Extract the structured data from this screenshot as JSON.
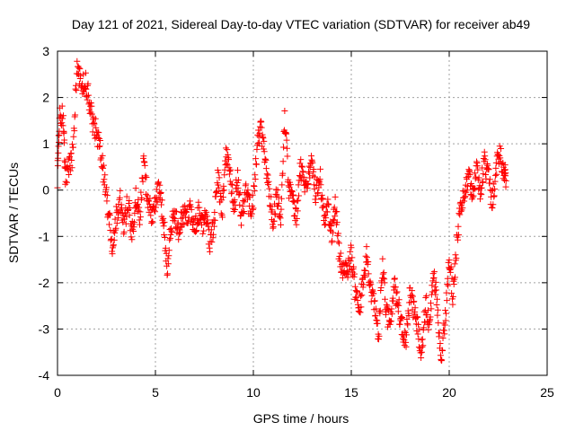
{
  "chart_data": {
    "type": "scatter",
    "title": "Day 121 of 2021, Sidereal Day-to-day VTEC variation (SDTVAR) for receiver ab49",
    "xlabel": "GPS time / hours",
    "ylabel": "SDTVAR / TECUs",
    "xlim": [
      0,
      25
    ],
    "ylim": [
      -4,
      3
    ],
    "x_ticks": [
      0,
      5,
      10,
      15,
      20,
      25
    ],
    "y_ticks": [
      -4,
      -3,
      -2,
      -1,
      0,
      1,
      2,
      3
    ],
    "x_tick_labels": [
      "0",
      "5",
      "10",
      "15",
      "20",
      "25"
    ],
    "y_tick_labels": [
      "-4",
      "-3",
      "-2",
      "-1",
      "0",
      "1",
      "2",
      "3"
    ],
    "grid": true,
    "marker": "+",
    "color": "#ff0000",
    "series": [
      {
        "name": "SDTVAR",
        "trend": [
          [
            0.0,
            0.3
          ],
          [
            0.1,
            1.6
          ],
          [
            0.3,
            1.6
          ],
          [
            0.4,
            0.3
          ],
          [
            0.6,
            0.5
          ],
          [
            0.8,
            0.8
          ],
          [
            1.0,
            2.8
          ],
          [
            1.2,
            2.2
          ],
          [
            1.4,
            2.4
          ],
          [
            1.6,
            2.0
          ],
          [
            1.8,
            1.5
          ],
          [
            2.0,
            1.2
          ],
          [
            2.2,
            0.9
          ],
          [
            2.4,
            0.2
          ],
          [
            2.6,
            -0.5
          ],
          [
            2.8,
            -1.2
          ],
          [
            3.0,
            -0.6
          ],
          [
            3.2,
            -0.2
          ],
          [
            3.4,
            -0.8
          ],
          [
            3.6,
            -0.2
          ],
          [
            3.8,
            -1.0
          ],
          [
            4.0,
            -0.1
          ],
          [
            4.2,
            -0.6
          ],
          [
            4.4,
            0.6
          ],
          [
            4.6,
            -0.2
          ],
          [
            4.8,
            -0.5
          ],
          [
            5.0,
            -0.3
          ],
          [
            5.2,
            0.1
          ],
          [
            5.4,
            -0.6
          ],
          [
            5.6,
            -1.7
          ],
          [
            5.8,
            -0.7
          ],
          [
            6.0,
            -0.5
          ],
          [
            6.2,
            -0.9
          ],
          [
            6.4,
            -0.5
          ],
          [
            6.6,
            -0.6
          ],
          [
            6.8,
            -0.4
          ],
          [
            7.0,
            -0.8
          ],
          [
            7.2,
            -0.5
          ],
          [
            7.4,
            -0.8
          ],
          [
            7.6,
            -0.6
          ],
          [
            7.8,
            -1.2
          ],
          [
            8.0,
            -0.6
          ],
          [
            8.2,
            0.3
          ],
          [
            8.4,
            -0.5
          ],
          [
            8.6,
            0.8
          ],
          [
            8.8,
            0.4
          ],
          [
            9.0,
            -0.4
          ],
          [
            9.2,
            0.3
          ],
          [
            9.4,
            -0.7
          ],
          [
            9.6,
            0.1
          ],
          [
            9.8,
            -0.4
          ],
          [
            10.0,
            -0.2
          ],
          [
            10.2,
            1.0
          ],
          [
            10.4,
            1.3
          ],
          [
            10.6,
            0.6
          ],
          [
            10.8,
            0.0
          ],
          [
            11.0,
            -0.6
          ],
          [
            11.2,
            -0.1
          ],
          [
            11.4,
            -0.6
          ],
          [
            11.6,
            1.6
          ],
          [
            11.8,
            0.1
          ],
          [
            12.0,
            -0.2
          ],
          [
            12.2,
            -0.6
          ],
          [
            12.4,
            0.5
          ],
          [
            12.6,
            0.0
          ],
          [
            12.8,
            0.2
          ],
          [
            13.0,
            0.6
          ],
          [
            13.2,
            -0.1
          ],
          [
            13.4,
            0.3
          ],
          [
            13.6,
            -0.6
          ],
          [
            13.8,
            -0.4
          ],
          [
            14.0,
            -1.0
          ],
          [
            14.2,
            -0.3
          ],
          [
            14.4,
            -1.5
          ],
          [
            14.6,
            -1.7
          ],
          [
            14.8,
            -1.8
          ],
          [
            15.0,
            -1.4
          ],
          [
            15.2,
            -2.2
          ],
          [
            15.4,
            -2.6
          ],
          [
            15.6,
            -2.0
          ],
          [
            15.8,
            -1.3
          ],
          [
            16.0,
            -2.2
          ],
          [
            16.2,
            -2.6
          ],
          [
            16.4,
            -3.1
          ],
          [
            16.6,
            -1.6
          ],
          [
            16.8,
            -2.7
          ],
          [
            17.0,
            -2.9
          ],
          [
            17.2,
            -2.1
          ],
          [
            17.4,
            -2.5
          ],
          [
            17.6,
            -3.0
          ],
          [
            17.8,
            -3.2
          ],
          [
            18.0,
            -2.2
          ],
          [
            18.2,
            -2.6
          ],
          [
            18.4,
            -3.0
          ],
          [
            18.6,
            -3.5
          ],
          [
            18.8,
            -2.4
          ],
          [
            19.0,
            -3.0
          ],
          [
            19.2,
            -1.7
          ],
          [
            19.4,
            -2.6
          ],
          [
            19.6,
            -3.6
          ],
          [
            19.8,
            -2.8
          ],
          [
            20.0,
            -1.5
          ],
          [
            20.2,
            -2.3
          ],
          [
            20.4,
            -1.0
          ],
          [
            20.6,
            -0.4
          ],
          [
            20.8,
            -0.1
          ],
          [
            21.0,
            0.4
          ],
          [
            21.2,
            -0.2
          ],
          [
            21.4,
            0.5
          ],
          [
            21.6,
            0.0
          ],
          [
            21.8,
            0.6
          ],
          [
            22.0,
            0.3
          ],
          [
            22.2,
            -0.3
          ],
          [
            22.4,
            0.5
          ],
          [
            22.6,
            0.8
          ],
          [
            22.8,
            0.4
          ],
          [
            22.9,
            0.2
          ]
        ]
      }
    ]
  }
}
